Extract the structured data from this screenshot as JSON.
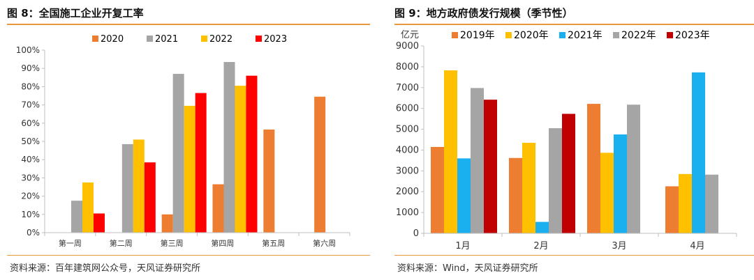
{
  "panels": [
    {
      "title": "图 8：全国施工企业开复工率",
      "source": "资料来源：百年建筑网公众号，天风证券研究所"
    },
    {
      "title": "图 9：地方政府债发行规模（季节性）",
      "source": "资料来源：Wind，天风证券研究所"
    }
  ],
  "chart_data": [
    {
      "type": "bar",
      "title": "全国施工企业开复工率",
      "categories": [
        "第一周",
        "第二周",
        "第三周",
        "第四周",
        "第五周",
        "第六周"
      ],
      "series": [
        {
          "name": "2020",
          "color": "#ed7d31",
          "values": [
            null,
            null,
            10,
            26.5,
            56.5,
            74.5
          ]
        },
        {
          "name": "2021",
          "color": "#a5a5a5",
          "values": [
            17.5,
            48.5,
            87,
            93.5,
            null,
            null
          ]
        },
        {
          "name": "2022",
          "color": "#ffc000",
          "values": [
            27.5,
            51,
            69.5,
            80.5,
            null,
            null
          ]
        },
        {
          "name": "2023",
          "color": "#ff0000",
          "values": [
            10.5,
            38.5,
            76.5,
            86,
            null,
            null
          ]
        }
      ],
      "ylim": [
        0,
        100
      ],
      "yticks": [
        0,
        10,
        20,
        30,
        40,
        50,
        60,
        70,
        80,
        90,
        100
      ],
      "ytick_suffix": "%",
      "ylabel": "",
      "xlabel": "",
      "legend": "top-center",
      "grid": false
    },
    {
      "type": "bar",
      "title": "地方政府债发行规模（季节性）",
      "categories": [
        "1月",
        "2月",
        "3月",
        "4月"
      ],
      "series": [
        {
          "name": "2019年",
          "color": "#ed7d31",
          "values": [
            4150,
            3620,
            6220,
            2260
          ]
        },
        {
          "name": "2020年",
          "color": "#ffc000",
          "values": [
            7830,
            4350,
            3870,
            2850
          ]
        },
        {
          "name": "2021年",
          "color": "#1ab0ef",
          "values": [
            3600,
            550,
            4750,
            7730
          ]
        },
        {
          "name": "2022年",
          "color": "#a5a5a5",
          "values": [
            6980,
            5050,
            6180,
            2820
          ]
        },
        {
          "name": "2023年",
          "color": "#c00000",
          "values": [
            6420,
            5740,
            null,
            null
          ]
        }
      ],
      "ylim": [
        0,
        9000
      ],
      "yticks": [
        0,
        1000,
        2000,
        3000,
        4000,
        5000,
        6000,
        7000,
        8000,
        9000
      ],
      "ytick_suffix": "",
      "ylabel": "亿元",
      "xlabel": "",
      "legend": "top",
      "grid": false
    }
  ]
}
